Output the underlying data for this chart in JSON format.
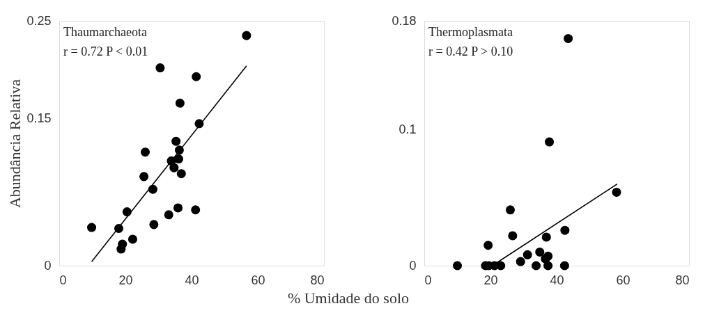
{
  "chart_data": [
    {
      "type": "scatter",
      "xlabel": "% Umidade do solo",
      "ylabel": "Abundância Relativa",
      "annotations": [
        "Thaumarchaeota",
        "r = 0.72 P < 0.01"
      ],
      "xlim": [
        0,
        80
      ],
      "xticks": [
        0,
        20,
        40,
        60,
        80
      ],
      "ylim": [
        0,
        0.25
      ],
      "yticks": [
        0,
        0.15,
        0.25
      ],
      "grid": false,
      "series": [
        {
          "marker": "circle",
          "color": "#000000",
          "x": [
            56.6,
            30.5,
            41.4,
            36.5,
            42.3,
            35.3,
            36.3,
            26.0,
            36.1,
            33.9,
            34.7,
            36.9,
            25.6,
            28.3,
            20.5,
            35.9,
            41.2,
            33.1,
            28.6,
            9.8,
            18.0,
            22.2,
            19.1,
            18.7
          ],
          "values": [
            0.235,
            0.202,
            0.193,
            0.166,
            0.145,
            0.127,
            0.118,
            0.116,
            0.109,
            0.107,
            0.1,
            0.094,
            0.091,
            0.078,
            0.055,
            0.059,
            0.057,
            0.052,
            0.042,
            0.039,
            0.038,
            0.027,
            0.022,
            0.017
          ]
        },
        {
          "type": "line",
          "color": "#000000",
          "line_style": "solid",
          "x": [
            9.8,
            56.6
          ],
          "values": [
            0.004,
            0.204
          ]
        }
      ]
    },
    {
      "type": "scatter",
      "annotations": [
        "Thermoplasmata",
        "r = 0.42 P > 0.10"
      ],
      "xlim": [
        0,
        80
      ],
      "xticks": [
        0,
        20,
        40,
        60,
        80
      ],
      "ylim": [
        0,
        0.18
      ],
      "yticks": [
        0,
        0.1,
        0.18
      ],
      "grid": false,
      "series": [
        {
          "marker": "circle",
          "color": "#000000",
          "x": [
            43.5,
            37.8,
            58.1,
            26.0,
            26.7,
            36.9,
            42.5,
            19.3,
            31.2,
            34.9,
            37.4,
            29.1,
            36.6,
            10.0,
            18.5,
            19.5,
            21.2,
            23.1,
            33.8,
            37.4,
            42.4
          ],
          "values": [
            0.167,
            0.091,
            0.054,
            0.041,
            0.022,
            0.021,
            0.026,
            0.015,
            0.008,
            0.01,
            0.007,
            0.003,
            0.005,
            0,
            0,
            0,
            0,
            0,
            0,
            0,
            0
          ]
        },
        {
          "type": "line",
          "color": "#000000",
          "line_style": "solid",
          "x": [
            21.2,
            58.3
          ],
          "values": [
            0.001,
            0.06
          ]
        }
      ]
    }
  ]
}
